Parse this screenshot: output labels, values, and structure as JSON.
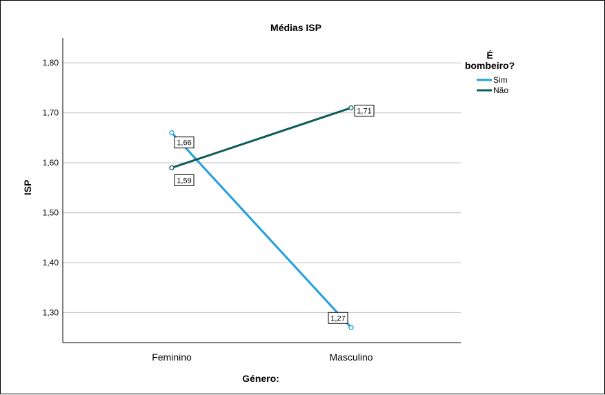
{
  "chart_data": {
    "type": "line",
    "title": "Médias ISP",
    "xlabel": "Género:",
    "ylabel": "ISP",
    "categories": [
      "Feminino",
      "Masculino"
    ],
    "ylim": [
      1.24,
      1.85
    ],
    "yticks": [
      1.3,
      1.4,
      1.5,
      1.6,
      1.7,
      1.8
    ],
    "ytick_labels": [
      "1,30",
      "1,40",
      "1,50",
      "1,60",
      "1,70",
      "1,80"
    ],
    "grid": true,
    "legend": {
      "title_line1": "É",
      "title_line2": "bombeiro?",
      "placement": "right"
    },
    "series": [
      {
        "name": "Sim",
        "values": [
          1.66,
          1.27
        ],
        "labels": [
          "1,66",
          "1,27"
        ],
        "color": "#1f9fe0"
      },
      {
        "name": "Não",
        "values": [
          1.59,
          1.71
        ],
        "labels": [
          "1,59",
          "1,71"
        ],
        "color": "#0b5b59"
      }
    ]
  }
}
